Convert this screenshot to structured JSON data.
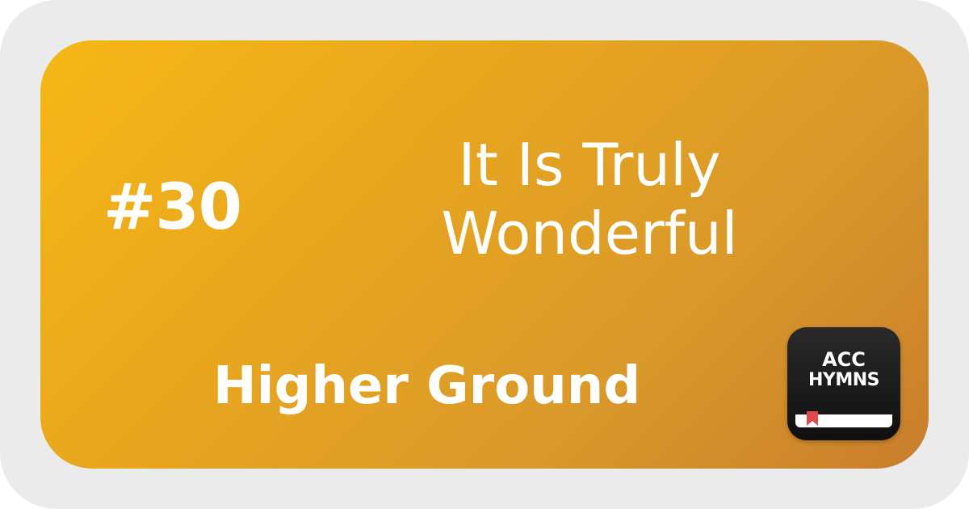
{
  "hymn": {
    "number": "#30",
    "title_lines": [
      "It Is Truly",
      "Wonderful"
    ],
    "subtitle": "Higher Ground"
  },
  "app_icon": {
    "line1": "ACC",
    "line2": "HYMNS",
    "icon_name": "bookmark-icon"
  },
  "colors": {
    "card_gradient_start": "#f6b716",
    "card_gradient_end": "#c97e2c",
    "frame": "#ebebeb",
    "text": "#ffffff",
    "app_icon_bg": "#1a1a1a",
    "bookmark": "#e04a4a"
  }
}
